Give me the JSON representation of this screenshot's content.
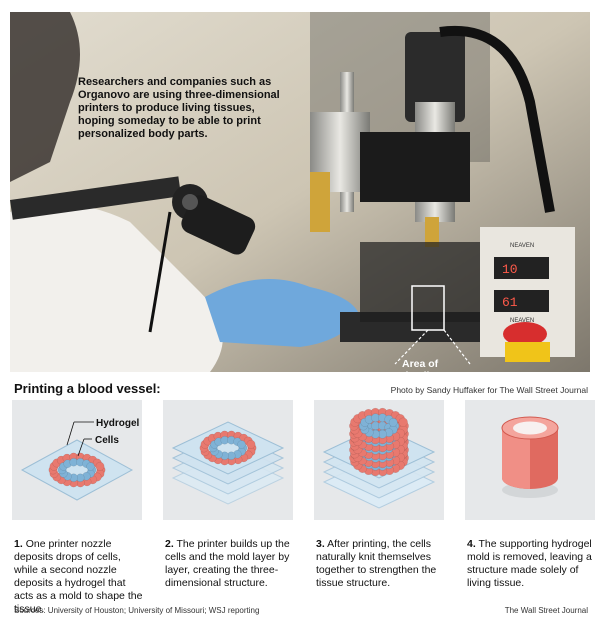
{
  "photo": {
    "caption": "Researchers and companies such as Organovo are using three-dimensional printers to produce living tissues, hoping someday to be able to print personalized body parts.",
    "area_label": "Area of detail, below",
    "device_label_1": "NEAVEN",
    "device_label_2": "NEAVEN",
    "display_1": "10",
    "display_2": "61"
  },
  "section": {
    "title": "Printing a blood vessel:",
    "credit": "Photo by Sandy Huffaker for The Wall Street Journal"
  },
  "diagram_labels": {
    "hydrogel": "Hydrogel",
    "cells": "Cells"
  },
  "steps": [
    {
      "number": "1.",
      "text": "One printer nozzle deposits drops of cells, while a second nozzle deposits a hydrogel that acts as a mold to shape the tissue."
    },
    {
      "number": "2.",
      "text": "The printer builds up the cells and the mold layer by layer, creating the three-dimensional structure."
    },
    {
      "number": "3.",
      "text": "After printing, the cells naturally knit themselves together to strengthen the tissue structure."
    },
    {
      "number": "4.",
      "text": "The supporting hydrogel mold is removed, leaving a structure made solely of living tissue."
    }
  ],
  "footer": {
    "sources": "Sources: University of Houston; University of Missouri; WSJ reporting",
    "publisher": "The Wall Street Journal"
  },
  "colors": {
    "cell_red": "#e8796f",
    "cell_blue": "#7fb2d6",
    "hydrogel": "#cfe3f0",
    "glove": "#6fa8dc"
  }
}
